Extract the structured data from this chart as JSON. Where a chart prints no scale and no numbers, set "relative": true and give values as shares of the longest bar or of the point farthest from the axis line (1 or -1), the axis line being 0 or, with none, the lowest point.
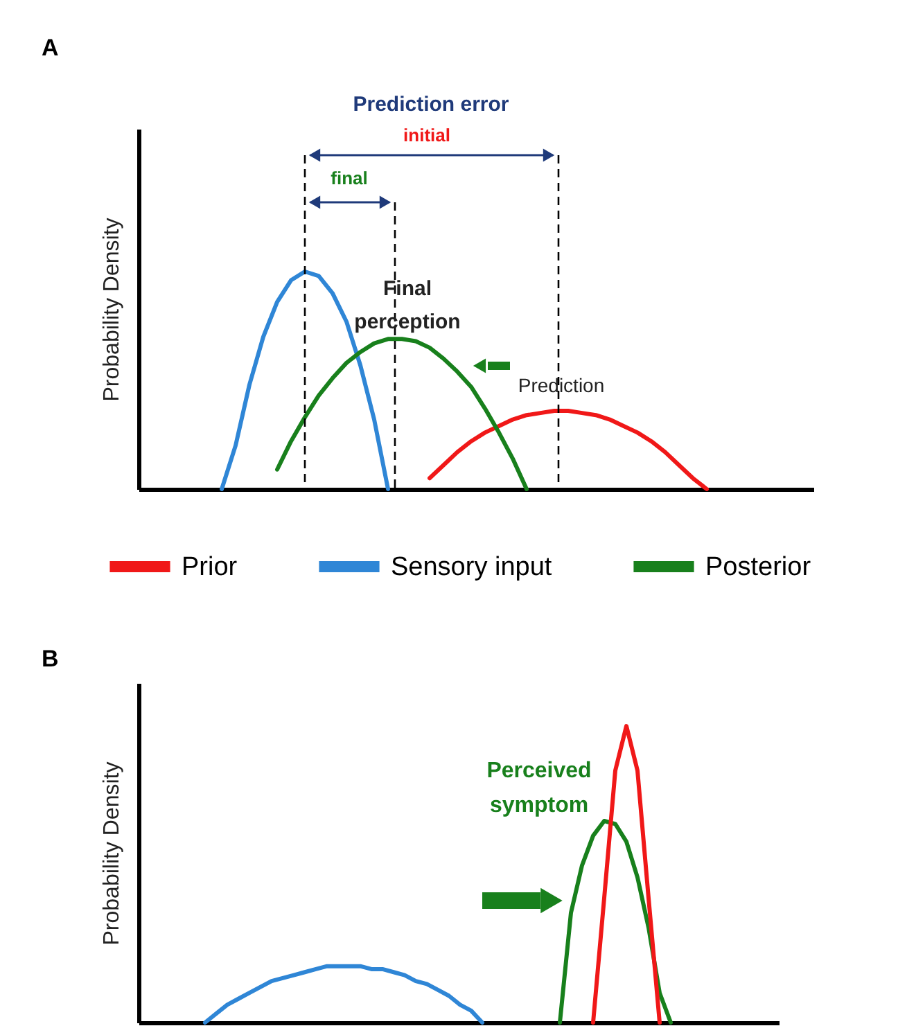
{
  "chart_data": [
    {
      "type": "line",
      "title": "A",
      "ylabel": "Probability Density",
      "relative": true,
      "tick_labels": false,
      "legend": "bottom",
      "categories": [
        null,
        null,
        null,
        null,
        null,
        null,
        null,
        null,
        null,
        null,
        null,
        null,
        null,
        null,
        null,
        null,
        null,
        null,
        null,
        null,
        null,
        null,
        null,
        null,
        null,
        null,
        null,
        null,
        null,
        null,
        null,
        null,
        null,
        null,
        null,
        null,
        null,
        null,
        null,
        null,
        null,
        null,
        null,
        null,
        null,
        null,
        null,
        null,
        null
      ],
      "series": [
        {
          "name": "Prior",
          "color": "#f01818",
          "values": [
            null,
            null,
            null,
            null,
            null,
            null,
            null,
            null,
            null,
            null,
            null,
            null,
            null,
            null,
            null,
            null,
            null,
            null,
            null,
            null,
            null,
            0.05,
            0.11,
            0.17,
            0.22,
            0.26,
            0.29,
            0.32,
            0.34,
            0.35,
            0.36,
            0.36,
            0.35,
            0.34,
            0.32,
            0.29,
            0.26,
            0.22,
            0.17,
            0.11,
            0.05,
            0,
            null,
            null,
            null,
            null,
            null,
            null,
            null
          ]
        },
        {
          "name": "Sensory input",
          "color": "#2f86d6",
          "values": [
            null,
            null,
            null,
            null,
            null,
            null,
            0,
            0.2,
            0.48,
            0.7,
            0.86,
            0.96,
            1.0,
            0.98,
            0.9,
            0.77,
            0.57,
            0.32,
            0,
            null,
            null,
            null,
            null,
            null,
            null,
            null,
            null,
            null,
            null,
            null,
            null,
            null,
            null,
            null,
            null,
            null,
            null,
            null,
            null,
            null,
            null,
            null,
            null,
            null,
            null,
            null,
            null,
            null,
            null
          ]
        },
        {
          "name": "Posterior",
          "color": "#18801c",
          "values": [
            null,
            null,
            null,
            null,
            null,
            null,
            null,
            null,
            null,
            null,
            0.09,
            0.22,
            0.33,
            0.43,
            0.51,
            0.58,
            0.63,
            0.67,
            0.69,
            0.69,
            0.68,
            0.65,
            0.6,
            0.54,
            0.47,
            0.37,
            0.26,
            0.14,
            0,
            null,
            null,
            null,
            null,
            null,
            null,
            null,
            null,
            null,
            null,
            null,
            null,
            null,
            null,
            null,
            null,
            null,
            null,
            null,
            null
          ]
        }
      ],
      "annotations": [
        "Prediction error",
        "initial",
        "final",
        "Final perception",
        "Prediction"
      ]
    },
    {
      "type": "line",
      "title": "B",
      "ylabel": "Probability Density",
      "relative": true,
      "tick_labels": false,
      "categories": [
        null,
        null,
        null,
        null,
        null,
        null,
        null,
        null,
        null,
        null,
        null,
        null,
        null,
        null,
        null,
        null,
        null,
        null,
        null,
        null,
        null,
        null,
        null,
        null,
        null,
        null,
        null,
        null,
        null,
        null,
        null,
        null,
        null,
        null,
        null,
        null,
        null,
        null,
        null,
        null,
        null,
        null,
        null,
        null,
        null,
        null,
        null,
        null,
        null,
        null,
        null,
        null,
        null,
        null,
        null,
        null,
        null,
        null
      ],
      "series": [
        {
          "color": "#2f86d6",
          "values": [
            null,
            null,
            null,
            null,
            null,
            null,
            0,
            0.03,
            0.06,
            0.08,
            0.1,
            0.12,
            0.14,
            0.15,
            0.16,
            0.17,
            0.18,
            0.19,
            0.19,
            0.19,
            0.19,
            0.18,
            0.18,
            0.17,
            0.16,
            0.14,
            0.13,
            0.11,
            0.09,
            0.06,
            0.04,
            0,
            null,
            null,
            null,
            null,
            null,
            null,
            null,
            null,
            null,
            null,
            null,
            null,
            null,
            null,
            null,
            null,
            null,
            null,
            null,
            null,
            null,
            null,
            null,
            null,
            null,
            null
          ]
        },
        {
          "color": "#18801c",
          "values": [
            null,
            null,
            null,
            null,
            null,
            null,
            null,
            null,
            null,
            null,
            null,
            null,
            null,
            null,
            null,
            null,
            null,
            null,
            null,
            null,
            null,
            null,
            null,
            null,
            null,
            null,
            null,
            null,
            null,
            null,
            null,
            null,
            null,
            null,
            null,
            null,
            null,
            null,
            0,
            0.37,
            0.53,
            0.63,
            0.68,
            0.67,
            0.61,
            0.49,
            0.32,
            0.1,
            0,
            null,
            null,
            null,
            null,
            null,
            null,
            null,
            null,
            null
          ]
        },
        {
          "color": "#f01818",
          "values": [
            null,
            null,
            null,
            null,
            null,
            null,
            null,
            null,
            null,
            null,
            null,
            null,
            null,
            null,
            null,
            null,
            null,
            null,
            null,
            null,
            null,
            null,
            null,
            null,
            null,
            null,
            null,
            null,
            null,
            null,
            null,
            null,
            null,
            null,
            null,
            null,
            null,
            null,
            null,
            null,
            null,
            0,
            0.42,
            0.85,
            1.0,
            0.85,
            0.42,
            0,
            null,
            null,
            null,
            null,
            null,
            null,
            null,
            null,
            null,
            null
          ]
        }
      ],
      "annotations": [
        "Perceived symptom"
      ]
    }
  ]
}
